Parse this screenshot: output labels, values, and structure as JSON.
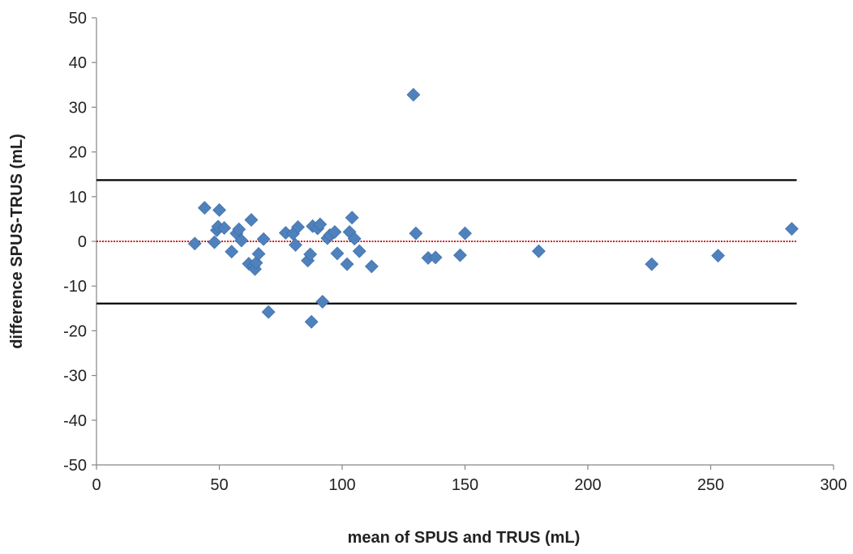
{
  "chart_data": {
    "type": "scatter",
    "title": "",
    "xlabel": "mean of SPUS and TRUS (mL)",
    "ylabel": "difference SPUS-TRUS (mL)",
    "xlim": [
      0,
      300
    ],
    "ylim": [
      -50,
      50
    ],
    "xticks": [
      0,
      50,
      100,
      150,
      200,
      250,
      300
    ],
    "yticks": [
      -50,
      -40,
      -30,
      -20,
      -10,
      0,
      10,
      20,
      30,
      40,
      50
    ],
    "grid": false,
    "legend": "none",
    "marker": "diamond",
    "marker_color": "#4F81BD",
    "reference_lines": [
      {
        "y": 13.7,
        "color": "#000000"
      },
      {
        "y": 0,
        "color": "#C00000"
      },
      {
        "y": -13.9,
        "color": "#000000"
      }
    ],
    "points": [
      {
        "x": 40,
        "y": -0.5
      },
      {
        "x": 44,
        "y": 7.5
      },
      {
        "x": 48,
        "y": -0.2
      },
      {
        "x": 49,
        "y": 2.5
      },
      {
        "x": 49.5,
        "y": 3.3
      },
      {
        "x": 50,
        "y": 7
      },
      {
        "x": 52,
        "y": 3
      },
      {
        "x": 55,
        "y": -2.3
      },
      {
        "x": 57,
        "y": 1.8
      },
      {
        "x": 58,
        "y": 2.7
      },
      {
        "x": 59,
        "y": 0.2
      },
      {
        "x": 62,
        "y": -5
      },
      {
        "x": 63,
        "y": 4.8
      },
      {
        "x": 64,
        "y": -5.5
      },
      {
        "x": 64.5,
        "y": -6.2
      },
      {
        "x": 65,
        "y": -4.8
      },
      {
        "x": 66,
        "y": -2.8
      },
      {
        "x": 68,
        "y": 0.5
      },
      {
        "x": 70,
        "y": -15.8
      },
      {
        "x": 77,
        "y": 1.9
      },
      {
        "x": 80,
        "y": 1.7
      },
      {
        "x": 81,
        "y": -0.8
      },
      {
        "x": 82,
        "y": 3.2
      },
      {
        "x": 86,
        "y": -4.3
      },
      {
        "x": 87,
        "y": -2.9
      },
      {
        "x": 87.5,
        "y": -18
      },
      {
        "x": 88,
        "y": 3.4
      },
      {
        "x": 90,
        "y": 2.9
      },
      {
        "x": 91,
        "y": 3.8
      },
      {
        "x": 92,
        "y": -13.5
      },
      {
        "x": 94,
        "y": 0.7
      },
      {
        "x": 95,
        "y": 1.4
      },
      {
        "x": 97,
        "y": 2.1
      },
      {
        "x": 98,
        "y": -2.7
      },
      {
        "x": 102,
        "y": -5.1
      },
      {
        "x": 103,
        "y": 2.1
      },
      {
        "x": 104,
        "y": 5.3
      },
      {
        "x": 105,
        "y": 0.6
      },
      {
        "x": 107,
        "y": -2.2
      },
      {
        "x": 112,
        "y": -5.6
      },
      {
        "x": 129,
        "y": 32.8
      },
      {
        "x": 130,
        "y": 1.8
      },
      {
        "x": 135,
        "y": -3.7
      },
      {
        "x": 138,
        "y": -3.6
      },
      {
        "x": 148,
        "y": -3.1
      },
      {
        "x": 150,
        "y": 1.8
      },
      {
        "x": 180,
        "y": -2.2
      },
      {
        "x": 226,
        "y": -5.1
      },
      {
        "x": 253,
        "y": -3.2
      },
      {
        "x": 283,
        "y": 2.8
      }
    ]
  }
}
